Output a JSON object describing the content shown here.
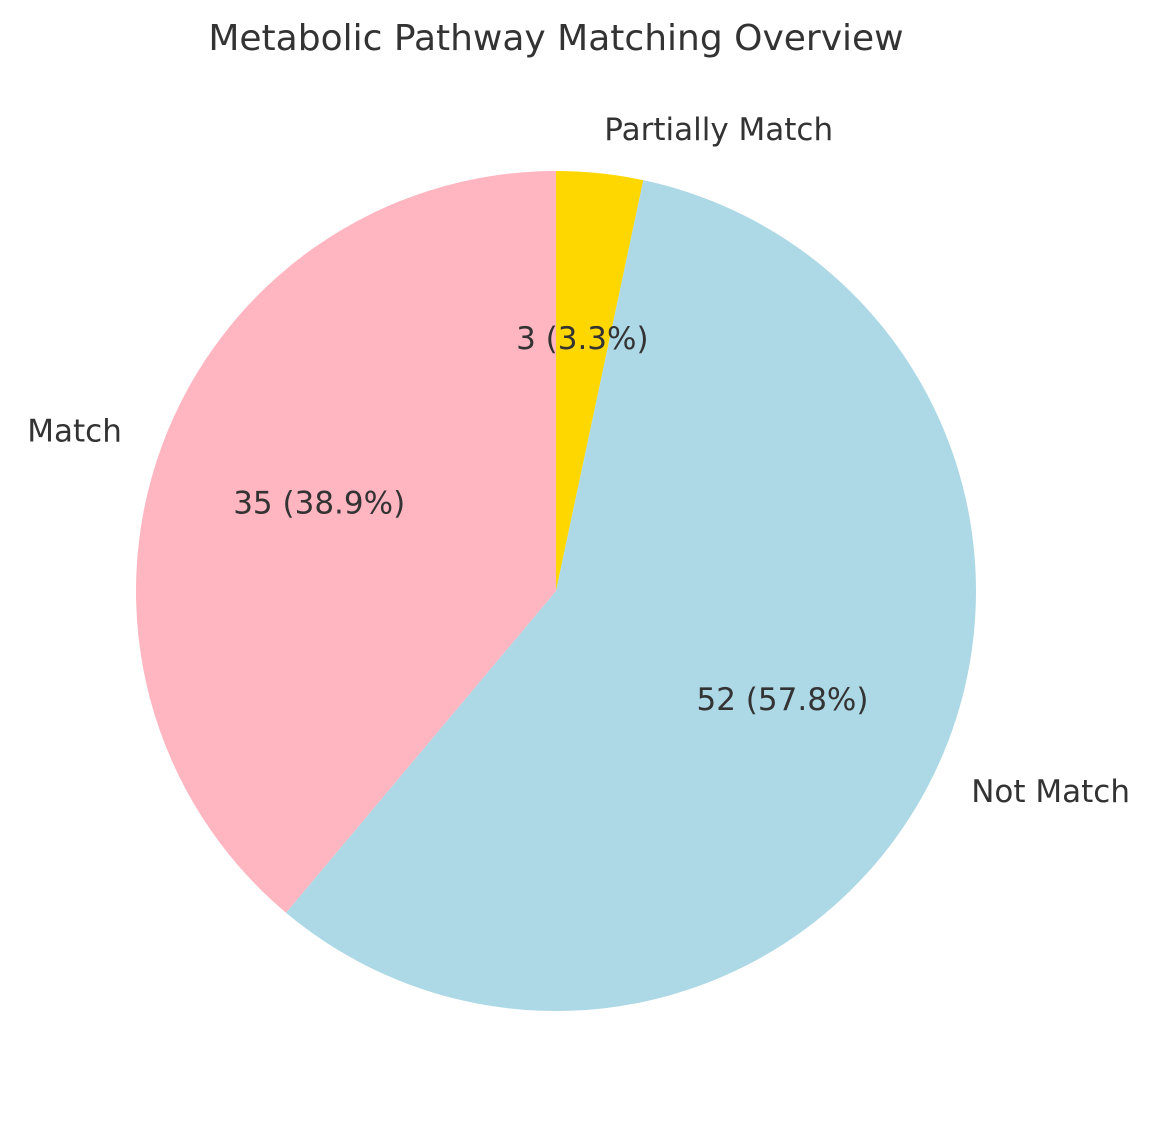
{
  "chart_data": {
    "type": "pie",
    "title": "Metabolic Pathway Matching Overview",
    "start_angle_deg": 90,
    "direction": "clockwise",
    "slices": [
      {
        "label": "Partially Match",
        "value": 3,
        "display": "3 (3.3%)",
        "color": "#FFD700"
      },
      {
        "label": "Not Match",
        "value": 52,
        "display": "52 (57.8%)",
        "color": "#ADD8E6"
      },
      {
        "label": "Match",
        "value": 35,
        "display": "35 (38.9%)",
        "color": "#FFB6C1"
      }
    ]
  }
}
